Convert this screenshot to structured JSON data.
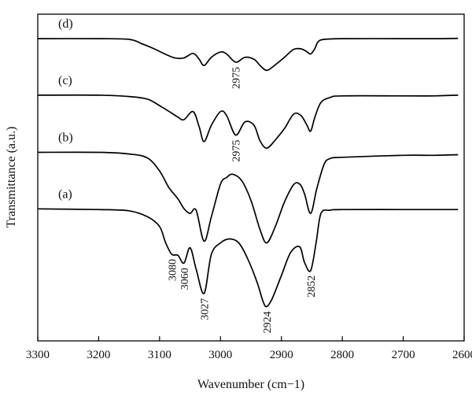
{
  "chart_data": {
    "type": "line",
    "title": "",
    "xlabel": "Wavenumber (cm−1)",
    "ylabel": "Transmittance (a.u.)",
    "xlim": [
      3300,
      2600
    ],
    "x_reversed": true,
    "ylim": [
      0,
      1
    ],
    "y_ticks_shown": false,
    "xticks": [
      "3300",
      "3200",
      "3100",
      "3000",
      "2900",
      "2800",
      "2700",
      "2600"
    ],
    "grid": false,
    "legend": "none",
    "line_color": "#000000",
    "series": [
      {
        "name": "(d)",
        "x": [
          3300,
          3200,
          3150,
          3130,
          3110,
          3090,
          3075,
          3060,
          3045,
          3035,
          3027,
          3015,
          3000,
          2990,
          2975,
          2960,
          2945,
          2935,
          2924,
          2910,
          2895,
          2880,
          2868,
          2858,
          2852,
          2845,
          2840,
          2830,
          2800,
          2700,
          2650,
          2610
        ],
        "y": [
          0.925,
          0.925,
          0.923,
          0.91,
          0.895,
          0.877,
          0.866,
          0.866,
          0.88,
          0.862,
          0.843,
          0.868,
          0.884,
          0.878,
          0.853,
          0.868,
          0.862,
          0.843,
          0.828,
          0.845,
          0.868,
          0.892,
          0.894,
          0.885,
          0.878,
          0.895,
          0.915,
          0.923,
          0.925,
          0.925,
          0.925,
          0.926
        ]
      },
      {
        "name": "(c)",
        "x": [
          3300,
          3200,
          3150,
          3120,
          3100,
          3085,
          3070,
          3060,
          3045,
          3035,
          3027,
          3015,
          3000,
          2990,
          2975,
          2960,
          2945,
          2935,
          2924,
          2910,
          2895,
          2880,
          2868,
          2858,
          2852,
          2845,
          2835,
          2820,
          2800,
          2700,
          2650,
          2610
        ],
        "y": [
          0.752,
          0.752,
          0.748,
          0.74,
          0.72,
          0.703,
          0.685,
          0.677,
          0.702,
          0.655,
          0.61,
          0.66,
          0.702,
          0.69,
          0.63,
          0.67,
          0.66,
          0.612,
          0.59,
          0.615,
          0.65,
          0.694,
          0.69,
          0.66,
          0.642,
          0.685,
          0.73,
          0.745,
          0.75,
          0.75,
          0.75,
          0.752
        ]
      },
      {
        "name": "(b)",
        "x": [
          3300,
          3200,
          3150,
          3120,
          3100,
          3085,
          3070,
          3060,
          3050,
          3040,
          3027,
          3015,
          3000,
          2990,
          2980,
          2965,
          2950,
          2935,
          2924,
          2910,
          2895,
          2880,
          2870,
          2862,
          2852,
          2842,
          2830,
          2820,
          2800,
          2700,
          2650,
          2610
        ],
        "y": [
          0.577,
          0.577,
          0.572,
          0.56,
          0.52,
          0.47,
          0.435,
          0.405,
          0.39,
          0.4,
          0.305,
          0.38,
          0.48,
          0.5,
          0.51,
          0.49,
          0.43,
          0.34,
          0.3,
          0.35,
          0.425,
          0.478,
          0.48,
          0.45,
          0.39,
          0.465,
          0.54,
          0.558,
          0.562,
          0.568,
          0.568,
          0.57
        ]
      },
      {
        "name": "(a)",
        "x": [
          3300,
          3200,
          3150,
          3120,
          3100,
          3090,
          3080,
          3070,
          3060,
          3050,
          3040,
          3027,
          3015,
          3000,
          2985,
          2970,
          2955,
          2940,
          2930,
          2924,
          2915,
          2900,
          2885,
          2870,
          2862,
          2852,
          2843,
          2835,
          2820,
          2800,
          2700,
          2610
        ],
        "y": [
          0.404,
          0.402,
          0.398,
          0.38,
          0.35,
          0.3,
          0.265,
          0.262,
          0.238,
          0.285,
          0.22,
          0.145,
          0.265,
          0.3,
          0.312,
          0.3,
          0.25,
          0.18,
          0.12,
          0.105,
          0.13,
          0.2,
          0.27,
          0.288,
          0.24,
          0.215,
          0.3,
          0.39,
          0.4,
          0.402,
          0.402,
          0.402
        ]
      }
    ],
    "annotations": [
      {
        "series": "(a)",
        "text": "3080",
        "x": 3080
      },
      {
        "series": "(a)",
        "text": "3060",
        "x": 3060
      },
      {
        "series": "(a)",
        "text": "3027",
        "x": 3027
      },
      {
        "series": "(a)",
        "text": "2924",
        "x": 2924
      },
      {
        "series": "(a)",
        "text": "2852",
        "x": 2852
      },
      {
        "series": "(c)",
        "text": "2975",
        "x": 2975
      },
      {
        "series": "(d)",
        "text": "2975",
        "x": 2975
      }
    ]
  }
}
